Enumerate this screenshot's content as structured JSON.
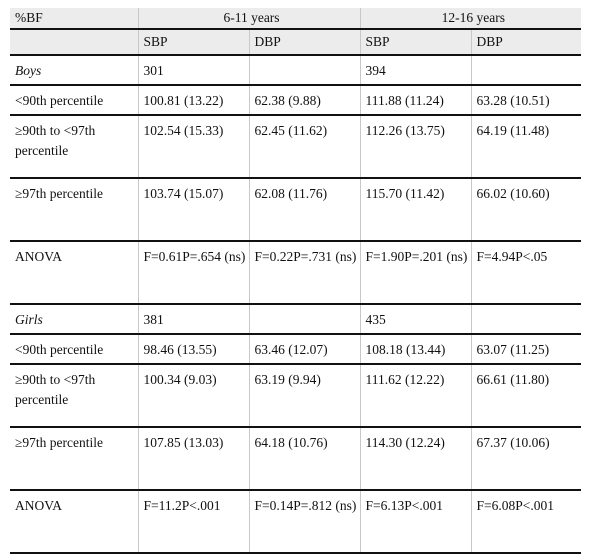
{
  "table": {
    "corner": "%BF",
    "groups": [
      "6-11 years",
      "12-16 years"
    ],
    "subheaders": [
      "SBP",
      "DBP",
      "SBP",
      "DBP"
    ],
    "rows": [
      {
        "label": "Boys",
        "italic": true,
        "cells": [
          "301",
          "",
          "394",
          ""
        ]
      },
      {
        "label": "<90th percentile",
        "cells": [
          "100.81 (13.22)",
          "62.38 (9.88)",
          "111.88 (11.24)",
          "63.28 (10.51)"
        ]
      },
      {
        "label": "≥90th to <97th percentile",
        "cells": [
          "102.54 (15.33)",
          "62.45 (11.62)",
          "112.26 (13.75)",
          "64.19 (11.48)"
        ]
      },
      {
        "label": "≥97th percentile",
        "cells": [
          "103.74 (15.07)",
          "62.08 (11.76)",
          "115.70 (11.42)",
          "66.02 (10.60)"
        ]
      },
      {
        "label": "ANOVA",
        "cells": [
          "F=0.61P=.654 (ns)",
          "F=0.22P=.731 (ns)",
          "F=1.90P=.201 (ns)",
          "F=4.94P<.05"
        ]
      },
      {
        "label": "Girls",
        "italic": true,
        "cells": [
          "381",
          "",
          "435",
          ""
        ]
      },
      {
        "label": "<90th percentile",
        "cells": [
          "98.46 (13.55)",
          "63.46 (12.07)",
          "108.18 (13.44)",
          "63.07 (11.25)"
        ]
      },
      {
        "label": "≥90th to <97th percentile",
        "cells": [
          "100.34 (9.03)",
          "63.19 (9.94)",
          "111.62 (12.22)",
          "66.61 (11.80)"
        ]
      },
      {
        "label": "≥97th percentile",
        "cells": [
          "107.85 (13.03)",
          "64.18 (10.76)",
          "114.30 (12.24)",
          "67.37 (10.06)"
        ]
      },
      {
        "label": "ANOVA",
        "cells": [
          "F=11.2P<.001",
          "F=0.14P=.812 (ns)",
          "F=6.13P<.001",
          "F=6.08P<.001"
        ]
      }
    ]
  }
}
